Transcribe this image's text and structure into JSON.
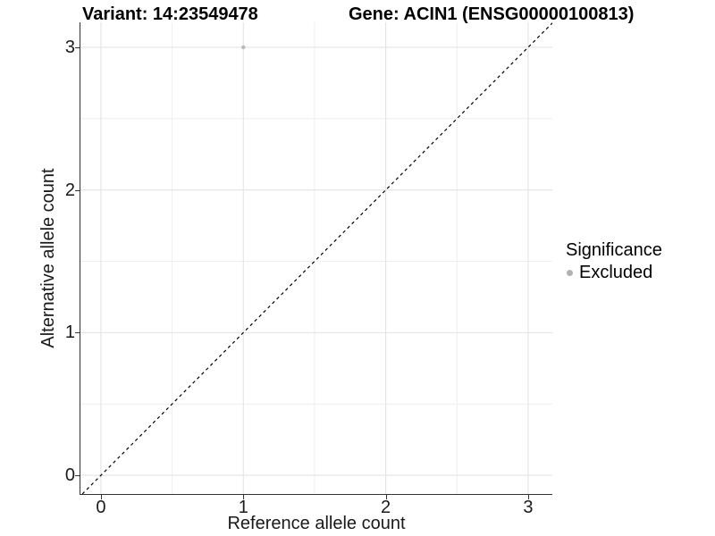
{
  "chart_data": {
    "type": "scatter",
    "titles": {
      "left": "Variant: 14:23549478",
      "right": "Gene: ACIN1 (ENSG00000100813)"
    },
    "xlabel": "Reference allele count",
    "ylabel": "Alternative allele count",
    "xlim": [
      -0.144,
      3.17
    ],
    "ylim": [
      -0.131,
      3.175
    ],
    "xticks": [
      0,
      1,
      2,
      3
    ],
    "yticks": [
      0,
      1,
      2,
      3
    ],
    "xticks_minor": [
      0.5,
      1.5,
      2.5
    ],
    "yticks_minor": [
      0.5,
      1.5,
      2.5
    ],
    "grid": "on",
    "points": [
      {
        "x": 1,
        "y": 3,
        "significance": "Excluded"
      }
    ],
    "reference_line": {
      "type": "identity",
      "style": "dashed",
      "color": "#000000"
    },
    "legend": {
      "title": "Significance",
      "position": "right",
      "items": [
        {
          "label": "Excluded",
          "color": "#b2b2b2"
        }
      ]
    },
    "colors": {
      "point": "#b9b9b9",
      "grid_major": "#e3e3e3",
      "grid_minor": "#eeeeee",
      "axis_line": "#333333",
      "tick_text": "#1a1a1a"
    }
  }
}
